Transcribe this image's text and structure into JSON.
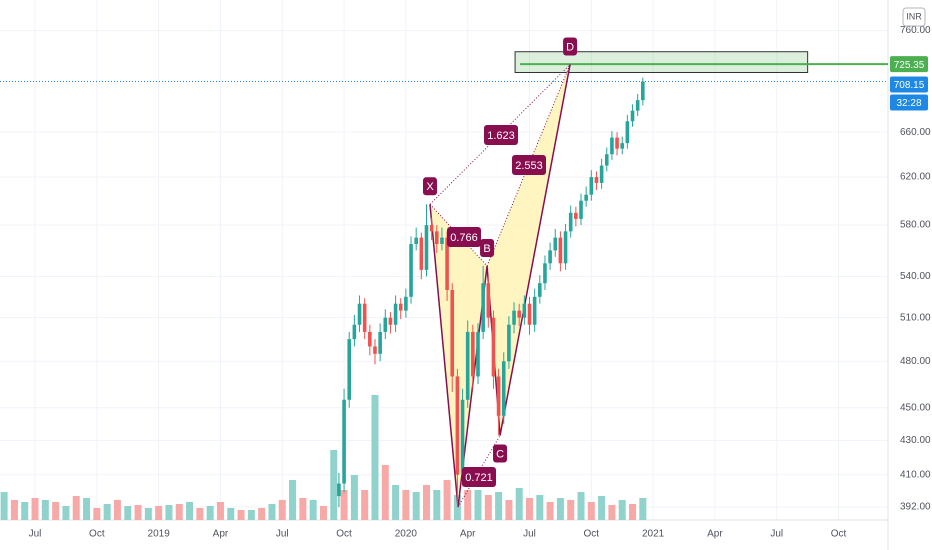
{
  "chart_data": {
    "type": "candlestick",
    "currency": "INR",
    "log_scale": true,
    "grid": true,
    "xlim": [
      -1.7,
      41.4
    ],
    "xticks": [
      {
        "value": 0,
        "label": "Jul"
      },
      {
        "value": 3,
        "label": "Oct"
      },
      {
        "value": 6,
        "label": "2019"
      },
      {
        "value": 9,
        "label": "Apr"
      },
      {
        "value": 12,
        "label": "Jul"
      },
      {
        "value": 15,
        "label": "Oct"
      },
      {
        "value": 18,
        "label": "2020"
      },
      {
        "value": 21,
        "label": "Apr"
      },
      {
        "value": 24,
        "label": "Jul"
      },
      {
        "value": 27,
        "label": "Oct"
      },
      {
        "value": 30,
        "label": "2021"
      },
      {
        "value": 33,
        "label": "Apr"
      },
      {
        "value": 36,
        "label": "Jul"
      },
      {
        "value": 39,
        "label": "Oct"
      }
    ],
    "ylim": [
      385,
      793
    ],
    "yticks": [
      {
        "value": 392,
        "label": "392.00"
      },
      {
        "value": 410,
        "label": "410.00"
      },
      {
        "value": 430,
        "label": "430.00"
      },
      {
        "value": 450,
        "label": "450.00"
      },
      {
        "value": 480,
        "label": "480.00"
      },
      {
        "value": 510,
        "label": "510.00"
      },
      {
        "value": 540,
        "label": "540.00"
      },
      {
        "value": 580,
        "label": "580.00"
      },
      {
        "value": 620,
        "label": "620.00"
      },
      {
        "value": 660,
        "label": "660.00"
      },
      {
        "value": 760,
        "label": "760.00"
      }
    ],
    "up_color": "#26a69a",
    "down_color": "#ef5350",
    "candles": {
      "x": [
        14.75,
        15,
        15.25,
        15.5,
        15.75,
        16,
        16.25,
        16.5,
        16.75,
        17,
        17.25,
        17.5,
        17.75,
        18,
        18.25,
        18.5,
        18.75,
        19,
        19.25,
        19.5,
        19.75,
        20,
        20.25,
        20.5,
        20.75,
        21,
        21.25,
        21.5,
        21.75,
        22,
        22.25,
        22.5,
        22.75,
        23,
        23.25,
        23.5,
        23.75,
        24,
        24.25,
        24.5,
        24.75,
        25,
        25.25,
        25.5,
        25.75,
        26,
        26.25,
        26.5,
        26.75,
        27,
        27.25,
        27.5,
        27.75,
        28,
        28.25,
        28.5,
        28.75,
        29,
        29.25,
        29.5
      ],
      "open": [
        398,
        405,
        455,
        495,
        505,
        520,
        500,
        490,
        485,
        500,
        510,
        505,
        520,
        515,
        525,
        565,
        570,
        545,
        580,
        575,
        565,
        570,
        530,
        470,
        410,
        455,
        500,
        470,
        500,
        535,
        510,
        470,
        445,
        480,
        505,
        515,
        510,
        520,
        505,
        525,
        535,
        550,
        560,
        570,
        550,
        575,
        590,
        585,
        600,
        605,
        620,
        615,
        630,
        640,
        655,
        645,
        650,
        670,
        680,
        690
      ],
      "high": [
        411,
        462,
        500,
        512,
        526,
        524,
        505,
        495,
        506,
        516,
        514,
        526,
        524,
        531,
        571,
        578,
        574,
        597,
        586,
        580,
        578,
        575,
        535,
        475,
        462,
        508,
        505,
        506,
        548,
        540,
        515,
        475,
        486,
        511,
        521,
        520,
        526,
        525,
        531,
        541,
        556,
        566,
        577,
        575,
        581,
        596,
        595,
        606,
        612,
        626,
        625,
        636,
        646,
        661,
        660,
        656,
        676,
        686,
        696,
        712
      ],
      "low": [
        392,
        400,
        450,
        490,
        500,
        495,
        484,
        478,
        480,
        495,
        499,
        500,
        509,
        510,
        520,
        560,
        538,
        540,
        568,
        558,
        560,
        522,
        460,
        392,
        404,
        450,
        462,
        465,
        495,
        503,
        462,
        433,
        440,
        475,
        499,
        504,
        505,
        498,
        500,
        520,
        530,
        545,
        555,
        544,
        545,
        570,
        579,
        580,
        595,
        600,
        609,
        610,
        625,
        635,
        639,
        640,
        645,
        665,
        675,
        685
      ],
      "close": [
        405,
        455,
        495,
        505,
        520,
        500,
        490,
        485,
        500,
        510,
        505,
        520,
        515,
        525,
        565,
        570,
        545,
        580,
        575,
        565,
        570,
        530,
        470,
        410,
        455,
        500,
        470,
        500,
        535,
        510,
        470,
        445,
        480,
        505,
        515,
        510,
        520,
        505,
        525,
        535,
        550,
        560,
        570,
        550,
        575,
        590,
        585,
        600,
        605,
        620,
        615,
        630,
        640,
        655,
        645,
        650,
        670,
        680,
        690,
        708
      ]
    },
    "volume_ylim": [
      0,
      150
    ],
    "volume": [
      {
        "color": "#8fd3cc",
        "x": [
          -1.5,
          -0.5,
          0.5,
          1.5,
          2.5,
          3.5,
          4.5,
          5.5,
          6.5,
          7.5,
          8.5,
          9.5,
          10.5,
          11.5,
          12.5,
          13.5,
          14.5,
          15.5,
          16.5,
          17.5,
          18.5,
          19.5,
          20.5,
          21.5,
          22.5,
          23.5,
          24.5,
          25.5,
          26.5,
          27.5,
          28.5,
          29.5
        ],
        "values": [
          28,
          18,
          20,
          14,
          22,
          16,
          14,
          12,
          15,
          18,
          14,
          12,
          10,
          16,
          40,
          20,
          70,
          45,
          125,
          35,
          28,
          30,
          25,
          30,
          28,
          32,
          25,
          22,
          28,
          24,
          20,
          22
        ]
      },
      {
        "color": "#f7a9a7",
        "x": [
          -1,
          0,
          1,
          2,
          3,
          4,
          5,
          6,
          7,
          8,
          9,
          10,
          11,
          12,
          13,
          14,
          15,
          16,
          17,
          18,
          19,
          20,
          21,
          22,
          23,
          24,
          25,
          26,
          27,
          28,
          29
        ],
        "values": [
          20,
          22,
          18,
          24,
          12,
          20,
          15,
          14,
          16,
          12,
          18,
          10,
          12,
          20,
          22,
          14,
          30,
          30,
          55,
          30,
          35,
          40,
          30,
          25,
          20,
          22,
          18,
          20,
          18,
          15,
          16
        ]
      }
    ],
    "pattern": {
      "line_color": "#880e4f",
      "fill": "#fff3b0",
      "points": [
        {
          "label": "X",
          "x": 19.17,
          "y": 597
        },
        {
          "x": 20.53,
          "y": 392
        },
        {
          "label": "B",
          "x": 21.94,
          "y": 548
        },
        {
          "label": "C",
          "x": 22.57,
          "y": 433
        },
        {
          "label": "D",
          "x": 25.97,
          "y": 725
        }
      ],
      "ratios": [
        0.766,
        0.721,
        1.623,
        2.553
      ]
    },
    "level": {
      "value": 725.35,
      "color": "#4caf50"
    },
    "box": {
      "x": [
        23.3,
        37.5
      ],
      "y": [
        717,
        738
      ]
    },
    "last_price": {
      "value": 708.15,
      "color": "#1e88e5"
    },
    "countdown": "32:28"
  }
}
